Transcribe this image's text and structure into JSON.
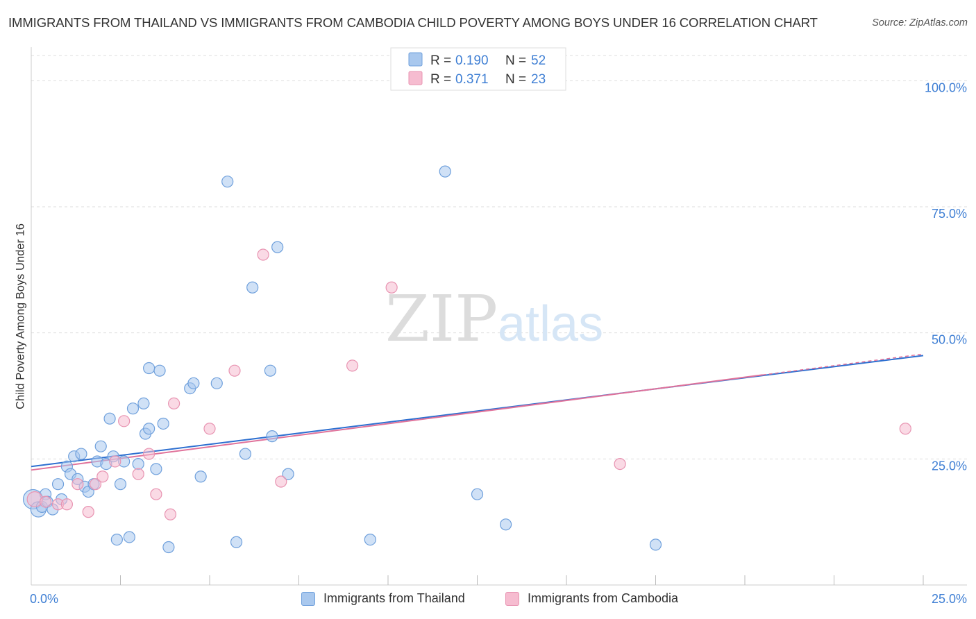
{
  "chart_data": {
    "type": "scatter",
    "title": "IMMIGRANTS FROM THAILAND VS IMMIGRANTS FROM CAMBODIA CHILD POVERTY AMONG BOYS UNDER 16 CORRELATION CHART",
    "source": "Source: ZipAtlas.com",
    "xlabel": "",
    "ylabel": "Child Poverty Among Boys Under 16",
    "xlim": [
      0,
      25
    ],
    "ylim": [
      0,
      105
    ],
    "x_tick_labels": [
      {
        "value": 0,
        "label": "0.0%"
      },
      {
        "value": 25,
        "label": "25.0%"
      }
    ],
    "y_tick_labels": [
      {
        "value": 25,
        "label": "25.0%"
      },
      {
        "value": 50,
        "label": "50.0%"
      },
      {
        "value": 75,
        "label": "75.0%"
      },
      {
        "value": 100,
        "label": "100.0%"
      }
    ],
    "watermark": {
      "part1": "ZIP",
      "part2": "atlas"
    },
    "legend": [
      {
        "label": "R = ",
        "r": "0.190",
        "n_label": "N = ",
        "n": "52"
      },
      {
        "label": "R = ",
        "r": "0.371",
        "n_label": "N = ",
        "n": "23"
      }
    ],
    "series": [
      {
        "name": "Immigrants from Thailand",
        "color": "#6fa0dc",
        "fill": "#a9c8ee",
        "line_color": "#2d6fd0",
        "trend": {
          "x0": 0,
          "y0": 23.5,
          "x1": 25,
          "y1": 45.5,
          "solid_until": 25
        },
        "points": [
          [
            0.05,
            17.0,
            2
          ],
          [
            0.2,
            15.0,
            1
          ],
          [
            0.3,
            15.5,
            0
          ],
          [
            0.4,
            18.0,
            0
          ],
          [
            0.45,
            16.5,
            0
          ],
          [
            0.6,
            15.0,
            0
          ],
          [
            0.75,
            20.0,
            0
          ],
          [
            0.85,
            17.0,
            0
          ],
          [
            1.0,
            23.5,
            0
          ],
          [
            1.1,
            22.0,
            0
          ],
          [
            1.2,
            25.5,
            0
          ],
          [
            1.3,
            21.0,
            0
          ],
          [
            1.4,
            26.0,
            0
          ],
          [
            1.5,
            19.5,
            0
          ],
          [
            1.6,
            18.5,
            0
          ],
          [
            1.75,
            20.0,
            0
          ],
          [
            1.85,
            24.5,
            0
          ],
          [
            1.95,
            27.5,
            0
          ],
          [
            2.1,
            24.0,
            0
          ],
          [
            2.2,
            33.0,
            0
          ],
          [
            2.3,
            25.5,
            0
          ],
          [
            2.4,
            9.0,
            0
          ],
          [
            2.5,
            20.0,
            0
          ],
          [
            2.6,
            24.5,
            0
          ],
          [
            2.75,
            9.5,
            0
          ],
          [
            2.85,
            35.0,
            0
          ],
          [
            3.0,
            24.0,
            0
          ],
          [
            3.15,
            36.0,
            0
          ],
          [
            3.2,
            30.0,
            0
          ],
          [
            3.3,
            31.0,
            0
          ],
          [
            3.3,
            43.0,
            0
          ],
          [
            3.5,
            23.0,
            0
          ],
          [
            3.6,
            42.5,
            0
          ],
          [
            3.7,
            32.0,
            0
          ],
          [
            3.85,
            7.5,
            0
          ],
          [
            4.45,
            39.0,
            0
          ],
          [
            4.55,
            40.0,
            0
          ],
          [
            4.75,
            21.5,
            0
          ],
          [
            5.2,
            40.0,
            0
          ],
          [
            5.5,
            80.0,
            0
          ],
          [
            5.75,
            8.5,
            0
          ],
          [
            6.0,
            26.0,
            0
          ],
          [
            6.2,
            59.0,
            0
          ],
          [
            6.7,
            42.5,
            0
          ],
          [
            6.75,
            29.5,
            0
          ],
          [
            6.9,
            67.0,
            0
          ],
          [
            7.2,
            22.0,
            0
          ],
          [
            9.5,
            9.0,
            0
          ],
          [
            11.6,
            82.0,
            0
          ],
          [
            12.5,
            18.0,
            0
          ],
          [
            13.3,
            12.0,
            0
          ],
          [
            17.5,
            8.0,
            0
          ]
        ]
      },
      {
        "name": "Immigrants from Cambodia",
        "color": "#e893b1",
        "fill": "#f6bcd0",
        "line_color": "#e0729a",
        "trend": {
          "x0": 0,
          "y0": 22.8,
          "x1": 25,
          "y1": 45.8,
          "solid_until": 20.5
        },
        "points": [
          [
            0.1,
            17.0,
            1
          ],
          [
            0.4,
            16.5,
            0
          ],
          [
            0.75,
            16.0,
            0
          ],
          [
            1.0,
            16.0,
            0
          ],
          [
            1.3,
            20.0,
            0
          ],
          [
            1.6,
            14.5,
            0
          ],
          [
            1.8,
            20.0,
            0
          ],
          [
            2.0,
            21.5,
            0
          ],
          [
            2.35,
            24.5,
            0
          ],
          [
            2.6,
            32.5,
            0
          ],
          [
            3.0,
            22.0,
            0
          ],
          [
            3.3,
            26.0,
            0
          ],
          [
            3.5,
            18.0,
            0
          ],
          [
            3.9,
            14.0,
            0
          ],
          [
            4.0,
            36.0,
            0
          ],
          [
            5.0,
            31.0,
            0
          ],
          [
            5.7,
            42.5,
            0
          ],
          [
            6.5,
            65.5,
            0
          ],
          [
            7.0,
            20.5,
            0
          ],
          [
            9.0,
            43.5,
            0
          ],
          [
            10.1,
            59.0,
            0
          ],
          [
            16.5,
            24.0,
            0
          ],
          [
            24.5,
            31.0,
            0
          ]
        ]
      }
    ]
  }
}
